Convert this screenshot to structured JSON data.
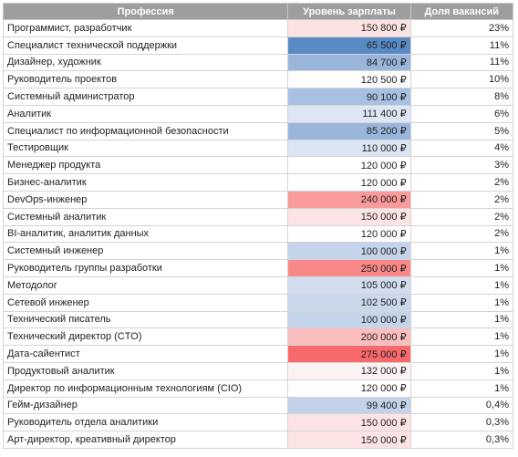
{
  "table": {
    "header": [
      "Профессия",
      "Уровень зарплаты",
      "Доля вакансий"
    ],
    "rows": [
      [
        "Программист, разработчик",
        "150 800 ₽",
        "23%"
      ],
      [
        "Специалист технической поддержки",
        "65 500 ₽",
        "11%"
      ],
      [
        "Дизайнер, художник",
        "84 700 ₽",
        "11%"
      ],
      [
        "Руководитель проектов",
        "120 500 ₽",
        "10%"
      ],
      [
        "Системный администратор",
        "90 100 ₽",
        "8%"
      ],
      [
        "Аналитик",
        "111 400 ₽",
        "6%"
      ],
      [
        "Специалист по информационной безопасности",
        "85 200 ₽",
        "5%"
      ],
      [
        "Тестировщик",
        "110 000 ₽",
        "4%"
      ],
      [
        "Менеджер продукта",
        "120 000 ₽",
        "3%"
      ],
      [
        "Бизнес-аналитик",
        "120 000 ₽",
        "2%"
      ],
      [
        "DevOps-инженер",
        "240 000 ₽",
        "2%"
      ],
      [
        "Системный аналитик",
        "150 000 ₽",
        "2%"
      ],
      [
        "BI-аналитик, аналитик данных",
        "120 000 ₽",
        "2%"
      ],
      [
        "Системный инженер",
        "100 000 ₽",
        "1%"
      ],
      [
        "Руководитель группы разработки",
        "250 000 ₽",
        "1%"
      ],
      [
        "Методолог",
        "105 000 ₽",
        "1%"
      ],
      [
        "Сетевой инженер",
        "102 500 ₽",
        "1%"
      ],
      [
        "Технический писатель",
        "100 000 ₽",
        "1%"
      ],
      [
        "Технический директор (CTO)",
        "200 000 ₽",
        "1%"
      ],
      [
        "Дата-сайентист",
        "275 000 ₽",
        "1%"
      ],
      [
        "Продуктовый аналитик",
        "132 000 ₽",
        "1%"
      ],
      [
        "Директор по информационным технологиям (CIO)",
        "120 000 ₽",
        "1%"
      ],
      [
        "Гейм-дизайнер",
        "99 400 ₽",
        "0,4%"
      ],
      [
        "Руководитель отдела аналитики",
        "150 000 ₽",
        "0,3%"
      ],
      [
        "Арт-директор, креативный директор",
        "150 000 ₽",
        "0,3%"
      ]
    ],
    "salary_colors": [
      "#fce3e3",
      "#5a8ac6",
      "#99b5dc",
      "#fefefe",
      "#a8c0e1",
      "#dee6f3",
      "#9ab6dc",
      "#dbe4f2",
      "#ffffff",
      "#ffffff",
      "#f99a9b",
      "#fce4e4",
      "#ffffff",
      "#c4d4ea",
      "#f98889",
      "#d2ddef",
      "#cad8ec",
      "#c4d4ea",
      "#fbbdbe",
      "#f8696b",
      "#fdf2f2",
      "#ffffff",
      "#c2d2e9",
      "#fce4e4",
      "#fce4e4"
    ]
  }
}
